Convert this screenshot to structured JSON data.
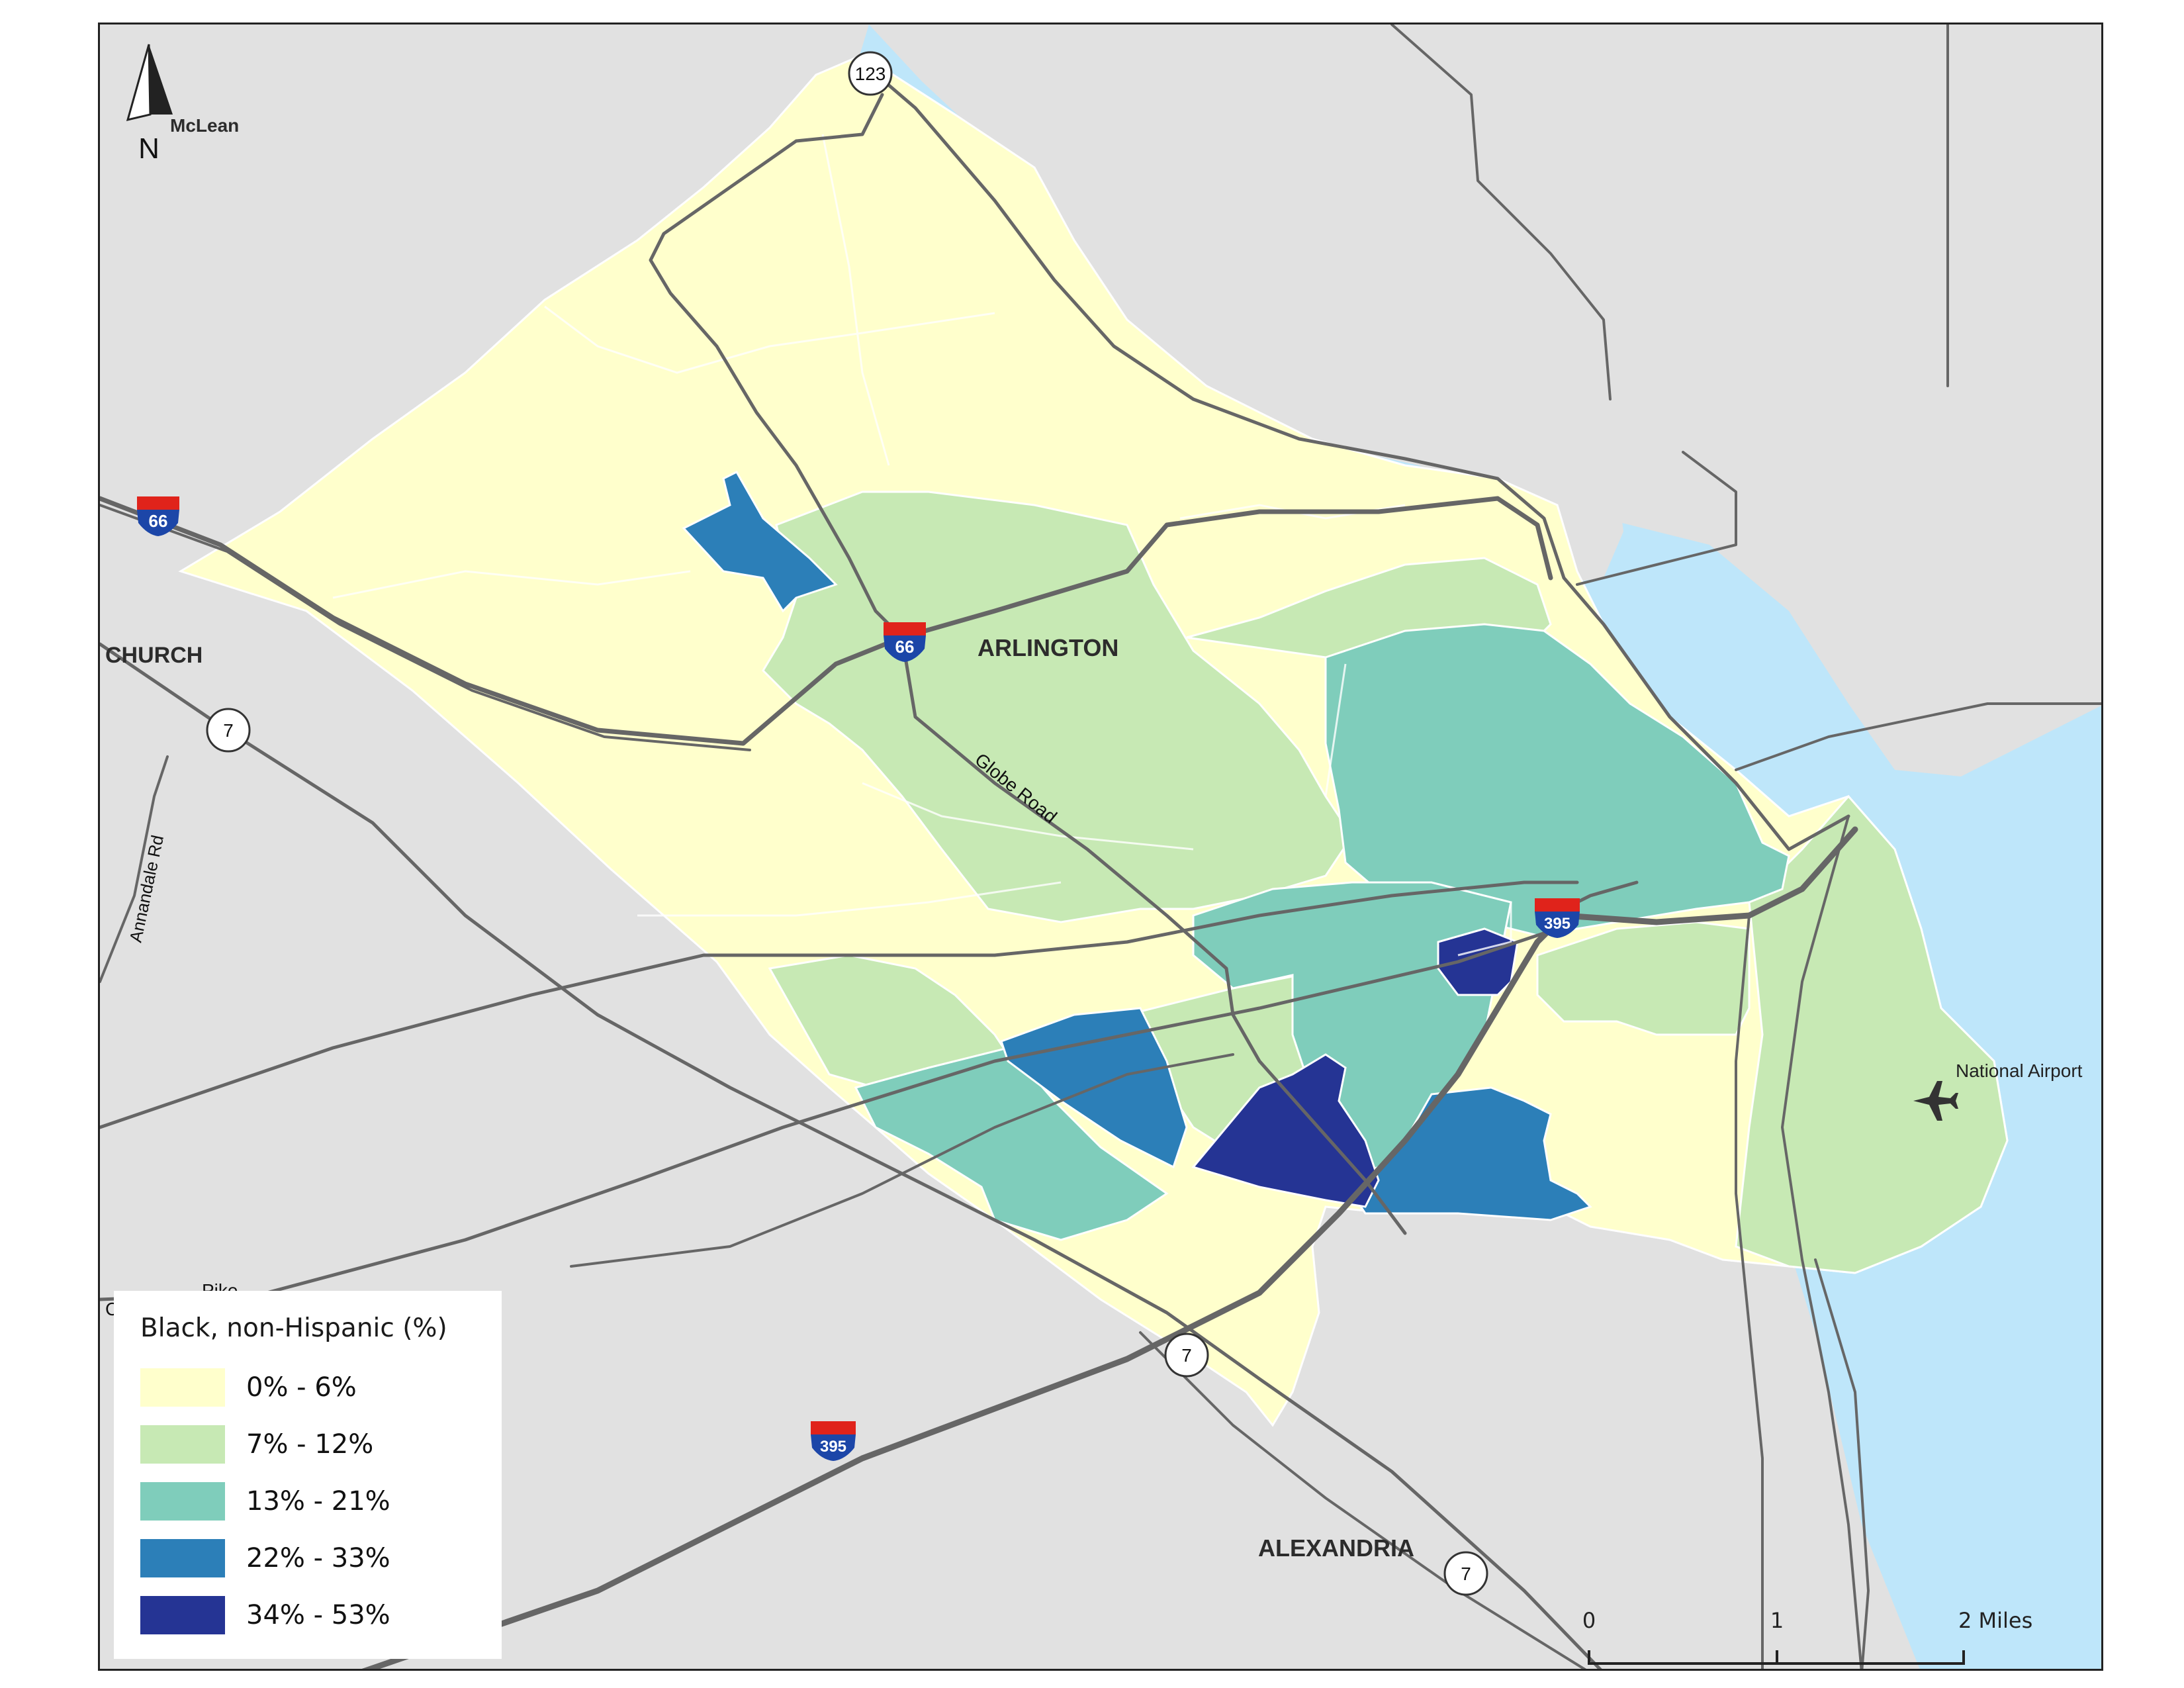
{
  "map": {
    "places": {
      "mclean": "McLean",
      "church": "CHURCH",
      "arlington": "ARLINGTON",
      "alexandria": "ALEXANDRIA",
      "national_airport": "National Airport"
    },
    "roads": {
      "globe_road": "Globe Road",
      "annandale_rd": "Annandale Rd",
      "pike_fragment": "Pike",
      "c_fragment": "C"
    },
    "shields": {
      "i66_a": "66",
      "i66_b": "66",
      "i395_a": "395",
      "i395_b": "395",
      "rt123": "123",
      "rt7_a": "7",
      "rt7_b": "7",
      "rt7_c": "7"
    },
    "north_arrow": "N",
    "scale_bar": {
      "ticks": [
        "0",
        "1",
        "2 Miles"
      ]
    },
    "colors": {
      "background": "#e1e1e1",
      "water": "#bee6fa",
      "roads": "#666666",
      "boundary": "#ffffff",
      "interstate_red": "#e0231b",
      "interstate_blue": "#1c46a8"
    }
  },
  "legend": {
    "title": "Black, non-Hispanic (%)",
    "classes": [
      {
        "label": "0% - 6%",
        "color": "#ffffcc"
      },
      {
        "label": "7% - 12%",
        "color": "#c7e9b4"
      },
      {
        "label": "13% - 21%",
        "color": "#7fcdbb"
      },
      {
        "label": "22% - 33%",
        "color": "#2c7fb8"
      },
      {
        "label": "34% - 53%",
        "color": "#253494"
      }
    ]
  }
}
